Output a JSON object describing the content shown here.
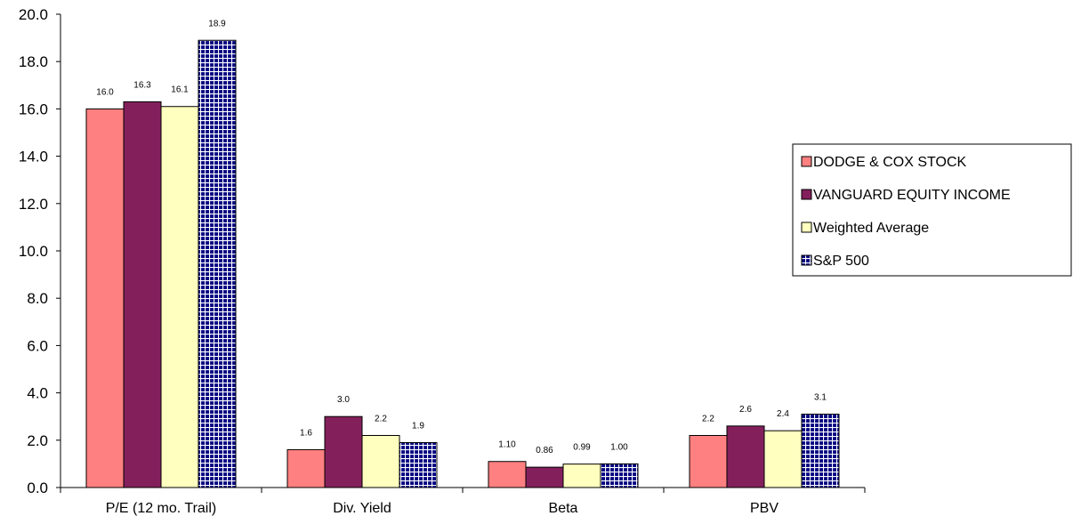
{
  "chart_data": {
    "type": "bar",
    "categories": [
      "P/E (12 mo. Trail)",
      "Div. Yield",
      "Beta",
      "PBV"
    ],
    "series": [
      {
        "name": "DODGE & COX STOCK",
        "values": [
          16.0,
          1.6,
          1.1,
          2.2
        ],
        "labels": [
          "16.0",
          "1.6",
          "1.10",
          "2.2"
        ],
        "color": "#FF8080",
        "pattern": "solid"
      },
      {
        "name": "VANGUARD EQUITY INCOME",
        "values": [
          16.3,
          3.0,
          0.86,
          2.6
        ],
        "labels": [
          "16.3",
          "3.0",
          "0.86",
          "2.6"
        ],
        "color": "#83205C",
        "pattern": "solid"
      },
      {
        "name": "Weighted Average",
        "values": [
          16.1,
          2.2,
          0.99,
          2.4
        ],
        "labels": [
          "16.1",
          "2.2",
          "0.99",
          "2.4"
        ],
        "color": "#FFFFC0",
        "pattern": "solid"
      },
      {
        "name": "S&P 500",
        "values": [
          18.9,
          1.9,
          1.0,
          3.1
        ],
        "labels": [
          "18.9",
          "1.9",
          "1.00",
          "3.1"
        ],
        "color": "#000080",
        "pattern": "grid"
      }
    ],
    "yticks": [
      "0.0",
      "2.0",
      "4.0",
      "6.0",
      "8.0",
      "10.0",
      "12.0",
      "14.0",
      "16.0",
      "18.0",
      "20.0"
    ],
    "ylim": [
      0,
      20
    ],
    "title": "",
    "xlabel": "",
    "ylabel": "",
    "legend_position": "right",
    "grid": false
  }
}
